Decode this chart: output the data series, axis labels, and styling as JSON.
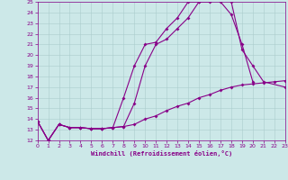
{
  "xlabel": "Windchill (Refroidissement éolien,°C)",
  "bg_color": "#cce8e8",
  "line_color": "#880088",
  "grid_color": "#aacccc",
  "xmin": 0,
  "xmax": 23,
  "ymin": 12,
  "ymax": 25,
  "line1_x": [
    0,
    1,
    2,
    3,
    4,
    5,
    6,
    7,
    8,
    9,
    10,
    11,
    12,
    13,
    14,
    15,
    16,
    17,
    18,
    19,
    20,
    21,
    23
  ],
  "line1_y": [
    13.8,
    12.0,
    13.5,
    13.2,
    13.2,
    13.1,
    13.1,
    13.2,
    13.3,
    15.5,
    19.0,
    21.0,
    21.5,
    22.5,
    23.5,
    25.0,
    25.0,
    25.5,
    25.0,
    20.5,
    19.0,
    17.5,
    17.0
  ],
  "line2_x": [
    0,
    1,
    2,
    3,
    4,
    5,
    6,
    7,
    8,
    9,
    10,
    11,
    12,
    13,
    14,
    15,
    16,
    17,
    18,
    19,
    20
  ],
  "line2_y": [
    13.8,
    12.0,
    13.5,
    13.2,
    13.2,
    13.1,
    13.1,
    13.2,
    16.0,
    19.0,
    21.0,
    21.2,
    22.5,
    23.5,
    25.0,
    25.0,
    25.5,
    25.0,
    23.8,
    21.0,
    17.5
  ],
  "line3_x": [
    0,
    1,
    2,
    3,
    4,
    5,
    6,
    7,
    8,
    9,
    10,
    11,
    12,
    13,
    14,
    15,
    16,
    17,
    18,
    19,
    20,
    21,
    22,
    23
  ],
  "line3_y": [
    13.8,
    12.0,
    13.5,
    13.2,
    13.2,
    13.1,
    13.1,
    13.2,
    13.3,
    13.5,
    14.0,
    14.3,
    14.8,
    15.2,
    15.5,
    16.0,
    16.3,
    16.7,
    17.0,
    17.2,
    17.3,
    17.4,
    17.5,
    17.6
  ]
}
